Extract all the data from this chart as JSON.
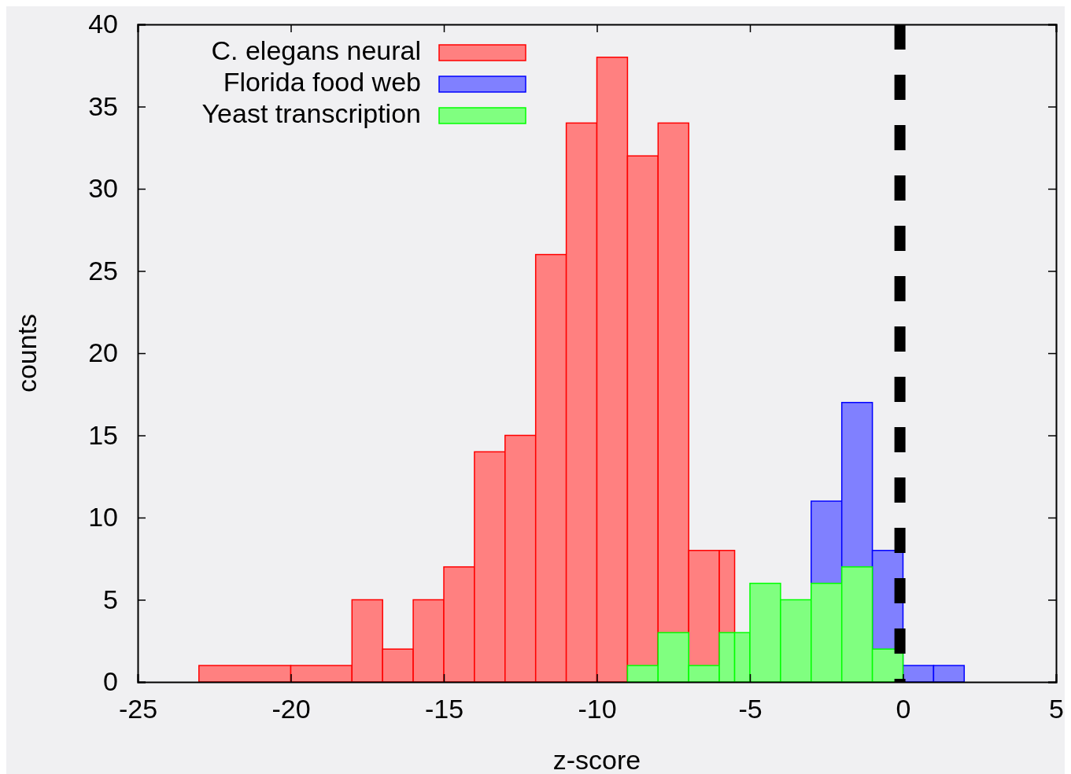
{
  "chart_data": {
    "type": "histogram",
    "xlabel": "z-score",
    "ylabel": "counts",
    "xlim": [
      -25,
      5
    ],
    "ylim": [
      0,
      40
    ],
    "xticks": [
      -25,
      -20,
      -15,
      -10,
      -5,
      0,
      5
    ],
    "yticks": [
      0,
      5,
      10,
      15,
      20,
      25,
      30,
      35,
      40
    ],
    "grid": false,
    "legend": "top left",
    "bins": [
      -23,
      -20,
      -18,
      -17,
      -16,
      -15,
      -14,
      -13,
      -12,
      -11,
      -10,
      -9,
      -8,
      -7,
      -6,
      -5.5,
      -5,
      -4,
      -3,
      -2,
      -1,
      0,
      1,
      2
    ],
    "series": [
      {
        "name": "C. elegans neural",
        "color": "#ff8080",
        "values": [
          1,
          1,
          5,
          2,
          5,
          7,
          14,
          15,
          26,
          34,
          38,
          32,
          34,
          8,
          8,
          null,
          null,
          null,
          null,
          null,
          null,
          null,
          null
        ]
      },
      {
        "name": "Florida food web",
        "color": "#8080ff",
        "values": [
          null,
          null,
          null,
          null,
          null,
          null,
          null,
          null,
          null,
          null,
          null,
          null,
          null,
          null,
          null,
          null,
          null,
          null,
          11,
          17,
          8,
          1,
          1
        ]
      },
      {
        "name": "Yeast transcription",
        "color": "#80ff80",
        "values": [
          null,
          null,
          null,
          null,
          null,
          null,
          null,
          null,
          null,
          null,
          null,
          1,
          3,
          1,
          3,
          3,
          6,
          5,
          6,
          7,
          2,
          null,
          null
        ]
      }
    ],
    "ref_lines": [
      {
        "axis": "x",
        "value": -0.1,
        "color": "#000000",
        "line_style": "dashed"
      }
    ]
  }
}
